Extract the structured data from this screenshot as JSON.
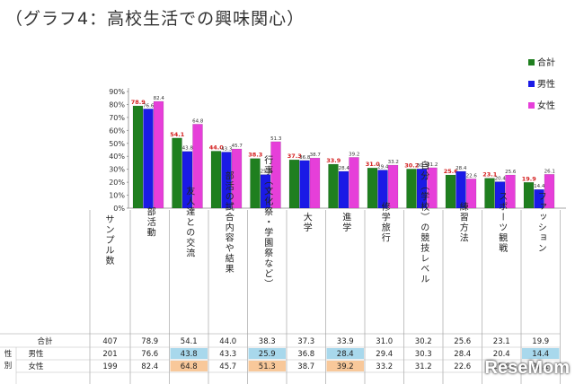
{
  "page_title": "（グラフ4：高校生活での興味関心）",
  "watermark": "ReseMom",
  "colors": {
    "total": "#1f7f1f",
    "male": "#1a1ae6",
    "female": "#e63fd9",
    "label_red": "#d42020",
    "cell_blue": "#a8d8ec",
    "cell_orange": "#f8c89a"
  },
  "chart_data": {
    "type": "bar",
    "categories": [
      "部活動",
      "友人達との交流",
      "部活の試合内容や結果",
      "行事（文化祭・学園祭など）",
      "大学",
      "進学",
      "修学旅行",
      "自分（学校）の競技レベル",
      "練習方法",
      "スポーツ観戦",
      "ファッション"
    ],
    "category_header": "サンプル数",
    "ylim": [
      0,
      90
    ],
    "yticks": [
      "0%",
      "10%",
      "20%",
      "30%",
      "40%",
      "50%",
      "60%",
      "70%",
      "80%",
      "90%"
    ],
    "grid": false,
    "legend_position": "top-right",
    "series": [
      {
        "name": "合計",
        "values": [
          78.9,
          54.1,
          44.0,
          38.3,
          37.3,
          33.9,
          31.0,
          30.2,
          25.6,
          23.1,
          19.9
        ],
        "labels": [
          "78.9",
          "54.1",
          "44.0",
          "38.3",
          "37.3",
          "33.9",
          "31.0",
          "30.2",
          "25.6",
          "23.1",
          "19.9"
        ]
      },
      {
        "name": "男性",
        "values": [
          76.6,
          43.8,
          43.3,
          25.9,
          36.8,
          28.4,
          29.4,
          30.3,
          28.4,
          20.4,
          14.4
        ],
        "labels": [
          "76.6",
          "43.8",
          "43.3",
          "25.9",
          "36.8",
          "28.4",
          "29.4",
          "30.3",
          "28.4",
          "20.4",
          "14.4"
        ]
      },
      {
        "name": "女性",
        "values": [
          82.4,
          64.8,
          45.7,
          51.3,
          38.7,
          39.2,
          33.2,
          31.2,
          22.6,
          25.6,
          26.1
        ],
        "labels": [
          "82.4",
          "64.8",
          "45.7",
          "51.3",
          "38.7",
          "39.2",
          "33.2",
          "31.2",
          "22.6",
          "25.6",
          "26.1"
        ]
      }
    ],
    "table": {
      "group_label": "性別",
      "rows": [
        {
          "label": "合計",
          "n": "407",
          "cells": [
            "78.9",
            "54.1",
            "44.0",
            "38.3",
            "37.3",
            "33.9",
            "31.0",
            "30.2",
            "25.6",
            "23.1",
            "19.9"
          ]
        },
        {
          "label": "男性",
          "n": "201",
          "cells": [
            "76.6",
            "43.8",
            "43.3",
            "25.9",
            "36.8",
            "28.4",
            "29.4",
            "30.3",
            "28.4",
            "20.4",
            "14.4"
          ]
        },
        {
          "label": "女性",
          "n": "199",
          "cells": [
            "82.4",
            "64.8",
            "45.7",
            "51.3",
            "38.7",
            "39.2",
            "33.2",
            "31.2",
            "22.6",
            "25.6",
            "26.1"
          ]
        }
      ],
      "highlights": {
        "blue": [
          [
            1,
            1
          ],
          [
            1,
            3
          ],
          [
            1,
            5
          ],
          [
            1,
            10
          ]
        ],
        "orange": [
          [
            2,
            1
          ],
          [
            2,
            3
          ],
          [
            2,
            5
          ]
        ]
      }
    }
  }
}
